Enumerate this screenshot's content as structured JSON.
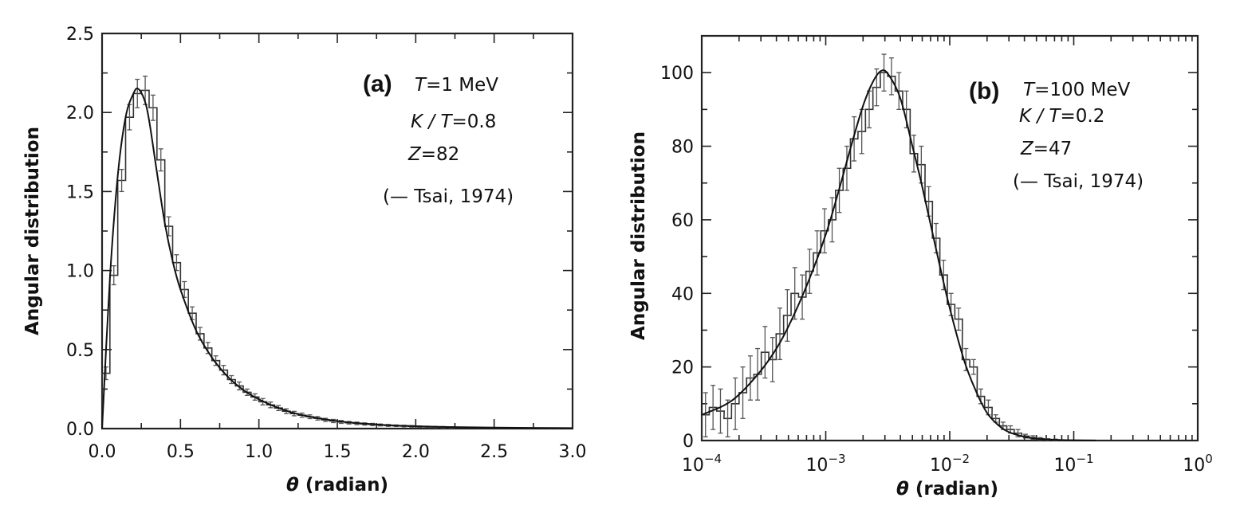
{
  "chart_data": [
    {
      "type": "line",
      "panel_label": "(a)",
      "annotations": {
        "line1": "=1 MeV",
        "line1_var": "T",
        "line2": "=0.8",
        "line2_var": "K / T",
        "line3": "=82",
        "line3_var": "Z",
        "line4": "(— Tsai, 1974)"
      },
      "xlabel_symbol": "θ",
      "xlabel": " (radian)",
      "ylabel": "Angular distribution",
      "xscale": "linear",
      "xlim": [
        0.0,
        3.0
      ],
      "ylim": [
        0.0,
        2.5
      ],
      "x_tick_labels": [
        "0.0",
        "0.5",
        "1.0",
        "1.5",
        "2.0",
        "2.5",
        "3.0"
      ],
      "y_tick_labels": [
        "0.0",
        "0.5",
        "1.0",
        "1.5",
        "2.0",
        "2.5"
      ],
      "series": [
        {
          "kind": "histogram",
          "bin_width": 0.05,
          "x": [
            0.0,
            0.05,
            0.1,
            0.15,
            0.2,
            0.25,
            0.3,
            0.35,
            0.4,
            0.45,
            0.5,
            0.55,
            0.6,
            0.65,
            0.7,
            0.75,
            0.8,
            0.85,
            0.9,
            0.95,
            1.0,
            1.05,
            1.1,
            1.15,
            1.2,
            1.25,
            1.3,
            1.35,
            1.4,
            1.45,
            1.5,
            1.55,
            1.6,
            1.65,
            1.7,
            1.75,
            1.8,
            1.85,
            1.9,
            1.95,
            2.0,
            2.05,
            2.1,
            2.15,
            2.2
          ],
          "values": [
            0.35,
            0.97,
            1.57,
            1.97,
            2.12,
            2.14,
            2.03,
            1.7,
            1.28,
            1.05,
            0.88,
            0.73,
            0.6,
            0.51,
            0.43,
            0.37,
            0.31,
            0.27,
            0.23,
            0.2,
            0.17,
            0.15,
            0.13,
            0.11,
            0.095,
            0.085,
            0.075,
            0.065,
            0.055,
            0.048,
            0.042,
            0.037,
            0.033,
            0.029,
            0.026,
            0.023,
            0.02,
            0.018,
            0.016,
            0.014,
            0.012,
            0.011,
            0.01,
            0.009,
            0.008
          ],
          "errors": [
            0.04,
            0.06,
            0.07,
            0.08,
            0.09,
            0.09,
            0.08,
            0.07,
            0.06,
            0.05,
            0.05,
            0.04,
            0.04,
            0.035,
            0.03,
            0.03,
            0.025,
            0.025,
            0.02,
            0.02,
            0.02,
            0.018,
            0.016,
            0.015,
            0.014,
            0.013,
            0.012,
            0.011,
            0.01,
            0.01,
            0.009,
            0.008,
            0.008,
            0.007,
            0.007,
            0.006,
            0.006,
            0.005,
            0.005,
            0.005,
            0.004,
            0.004,
            0.004,
            0.004,
            0.003
          ]
        },
        {
          "kind": "curve",
          "x": [
            0.0,
            0.05,
            0.1,
            0.15,
            0.2,
            0.23,
            0.27,
            0.3,
            0.35,
            0.4,
            0.45,
            0.5,
            0.6,
            0.7,
            0.8,
            0.9,
            1.0,
            1.1,
            1.2,
            1.3,
            1.4,
            1.5,
            1.6,
            1.8,
            2.0,
            2.2,
            2.5,
            3.0
          ],
          "values": [
            0.0,
            0.95,
            1.6,
            1.97,
            2.12,
            2.15,
            2.08,
            1.95,
            1.62,
            1.3,
            1.06,
            0.88,
            0.62,
            0.45,
            0.33,
            0.245,
            0.185,
            0.14,
            0.105,
            0.08,
            0.062,
            0.048,
            0.037,
            0.023,
            0.015,
            0.01,
            0.006,
            0.003
          ]
        }
      ]
    },
    {
      "type": "line",
      "panel_label": "(b)",
      "annotations": {
        "line1": "=100 MeV",
        "line1_var": "T",
        "line2": "=0.2",
        "line2_var": "K / T",
        "line3": "=47",
        "line3_var": "Z",
        "line4": "(— Tsai, 1974)"
      },
      "xlabel_symbol": "θ",
      "xlabel": " (radian)",
      "ylabel": "Angular distribution",
      "xscale": "log",
      "xlim": [
        0.0001,
        1.0
      ],
      "ylim": [
        0,
        110
      ],
      "x_tick_labels": [
        {
          "base": "10",
          "exp": "−4"
        },
        {
          "base": "10",
          "exp": "−3"
        },
        {
          "base": "10",
          "exp": "−2"
        },
        {
          "base": "10",
          "exp": "−1"
        },
        {
          "base": "10",
          "exp": "0"
        }
      ],
      "y_tick_labels": [
        "0",
        "20",
        "40",
        "60",
        "80",
        "100"
      ],
      "series": [
        {
          "kind": "histogram",
          "x": [
            0.0001,
            0.000115,
            0.000132,
            0.000151,
            0.000174,
            0.0002,
            0.00023,
            0.000263,
            0.000302,
            0.000347,
            0.000398,
            0.000457,
            0.000525,
            0.000603,
            0.000692,
            0.000794,
            0.000912,
            0.00105,
            0.0012,
            0.00138,
            0.00158,
            0.00182,
            0.00209,
            0.0024,
            0.00275,
            0.00316,
            0.00363,
            0.00417,
            0.00479,
            0.0055,
            0.00631,
            0.00724,
            0.00832,
            0.00955,
            0.011,
            0.0126,
            0.0145,
            0.0166,
            0.0191,
            0.0219,
            0.0251,
            0.0288,
            0.0331,
            0.038,
            0.0437,
            0.0501,
            0.0575,
            0.0661,
            0.0759,
            0.0871
          ],
          "values": [
            7,
            9,
            8,
            6,
            10,
            13,
            17,
            18,
            24,
            22,
            29,
            34,
            40,
            39,
            46,
            51,
            57,
            60,
            68,
            74,
            82,
            84,
            90,
            96,
            100,
            99,
            95,
            90,
            78,
            75,
            65,
            55,
            45,
            37,
            33,
            22,
            20,
            12,
            9,
            6,
            4,
            3,
            2,
            1.2,
            0.8,
            0.5,
            0.3,
            0.2,
            0.1,
            0.05
          ],
          "errors": [
            6,
            6,
            6,
            5,
            7,
            7,
            6,
            7,
            7,
            6,
            7,
            7,
            7,
            6,
            6,
            6,
            6,
            6,
            6,
            6,
            6,
            6,
            5,
            5,
            5,
            5,
            5,
            5,
            5,
            5,
            4,
            4,
            4,
            3,
            3,
            3,
            2,
            2,
            2,
            1,
            1,
            1,
            1,
            0.5,
            0.5,
            0.3,
            0.2,
            0.2,
            0.1,
            0.1
          ]
        },
        {
          "kind": "curve",
          "x": [
            0.0001,
            0.00015,
            0.0002,
            0.0003,
            0.0004,
            0.0005,
            0.0007,
            0.001,
            0.0013,
            0.0016,
            0.002,
            0.0024,
            0.0028,
            0.0032,
            0.004,
            0.005,
            0.006,
            0.008,
            0.01,
            0.013,
            0.016,
            0.02,
            0.025,
            0.03,
            0.04,
            0.05,
            0.07,
            0.1,
            0.15
          ],
          "values": [
            7,
            9.5,
            12.5,
            19,
            25,
            31,
            42,
            56,
            69,
            80,
            91,
            97.5,
            100.5,
            99.5,
            93,
            80,
            69,
            50,
            36,
            22,
            14,
            7.5,
            4,
            2.3,
            1,
            0.5,
            0.2,
            0.08,
            0.02
          ]
        }
      ]
    }
  ]
}
